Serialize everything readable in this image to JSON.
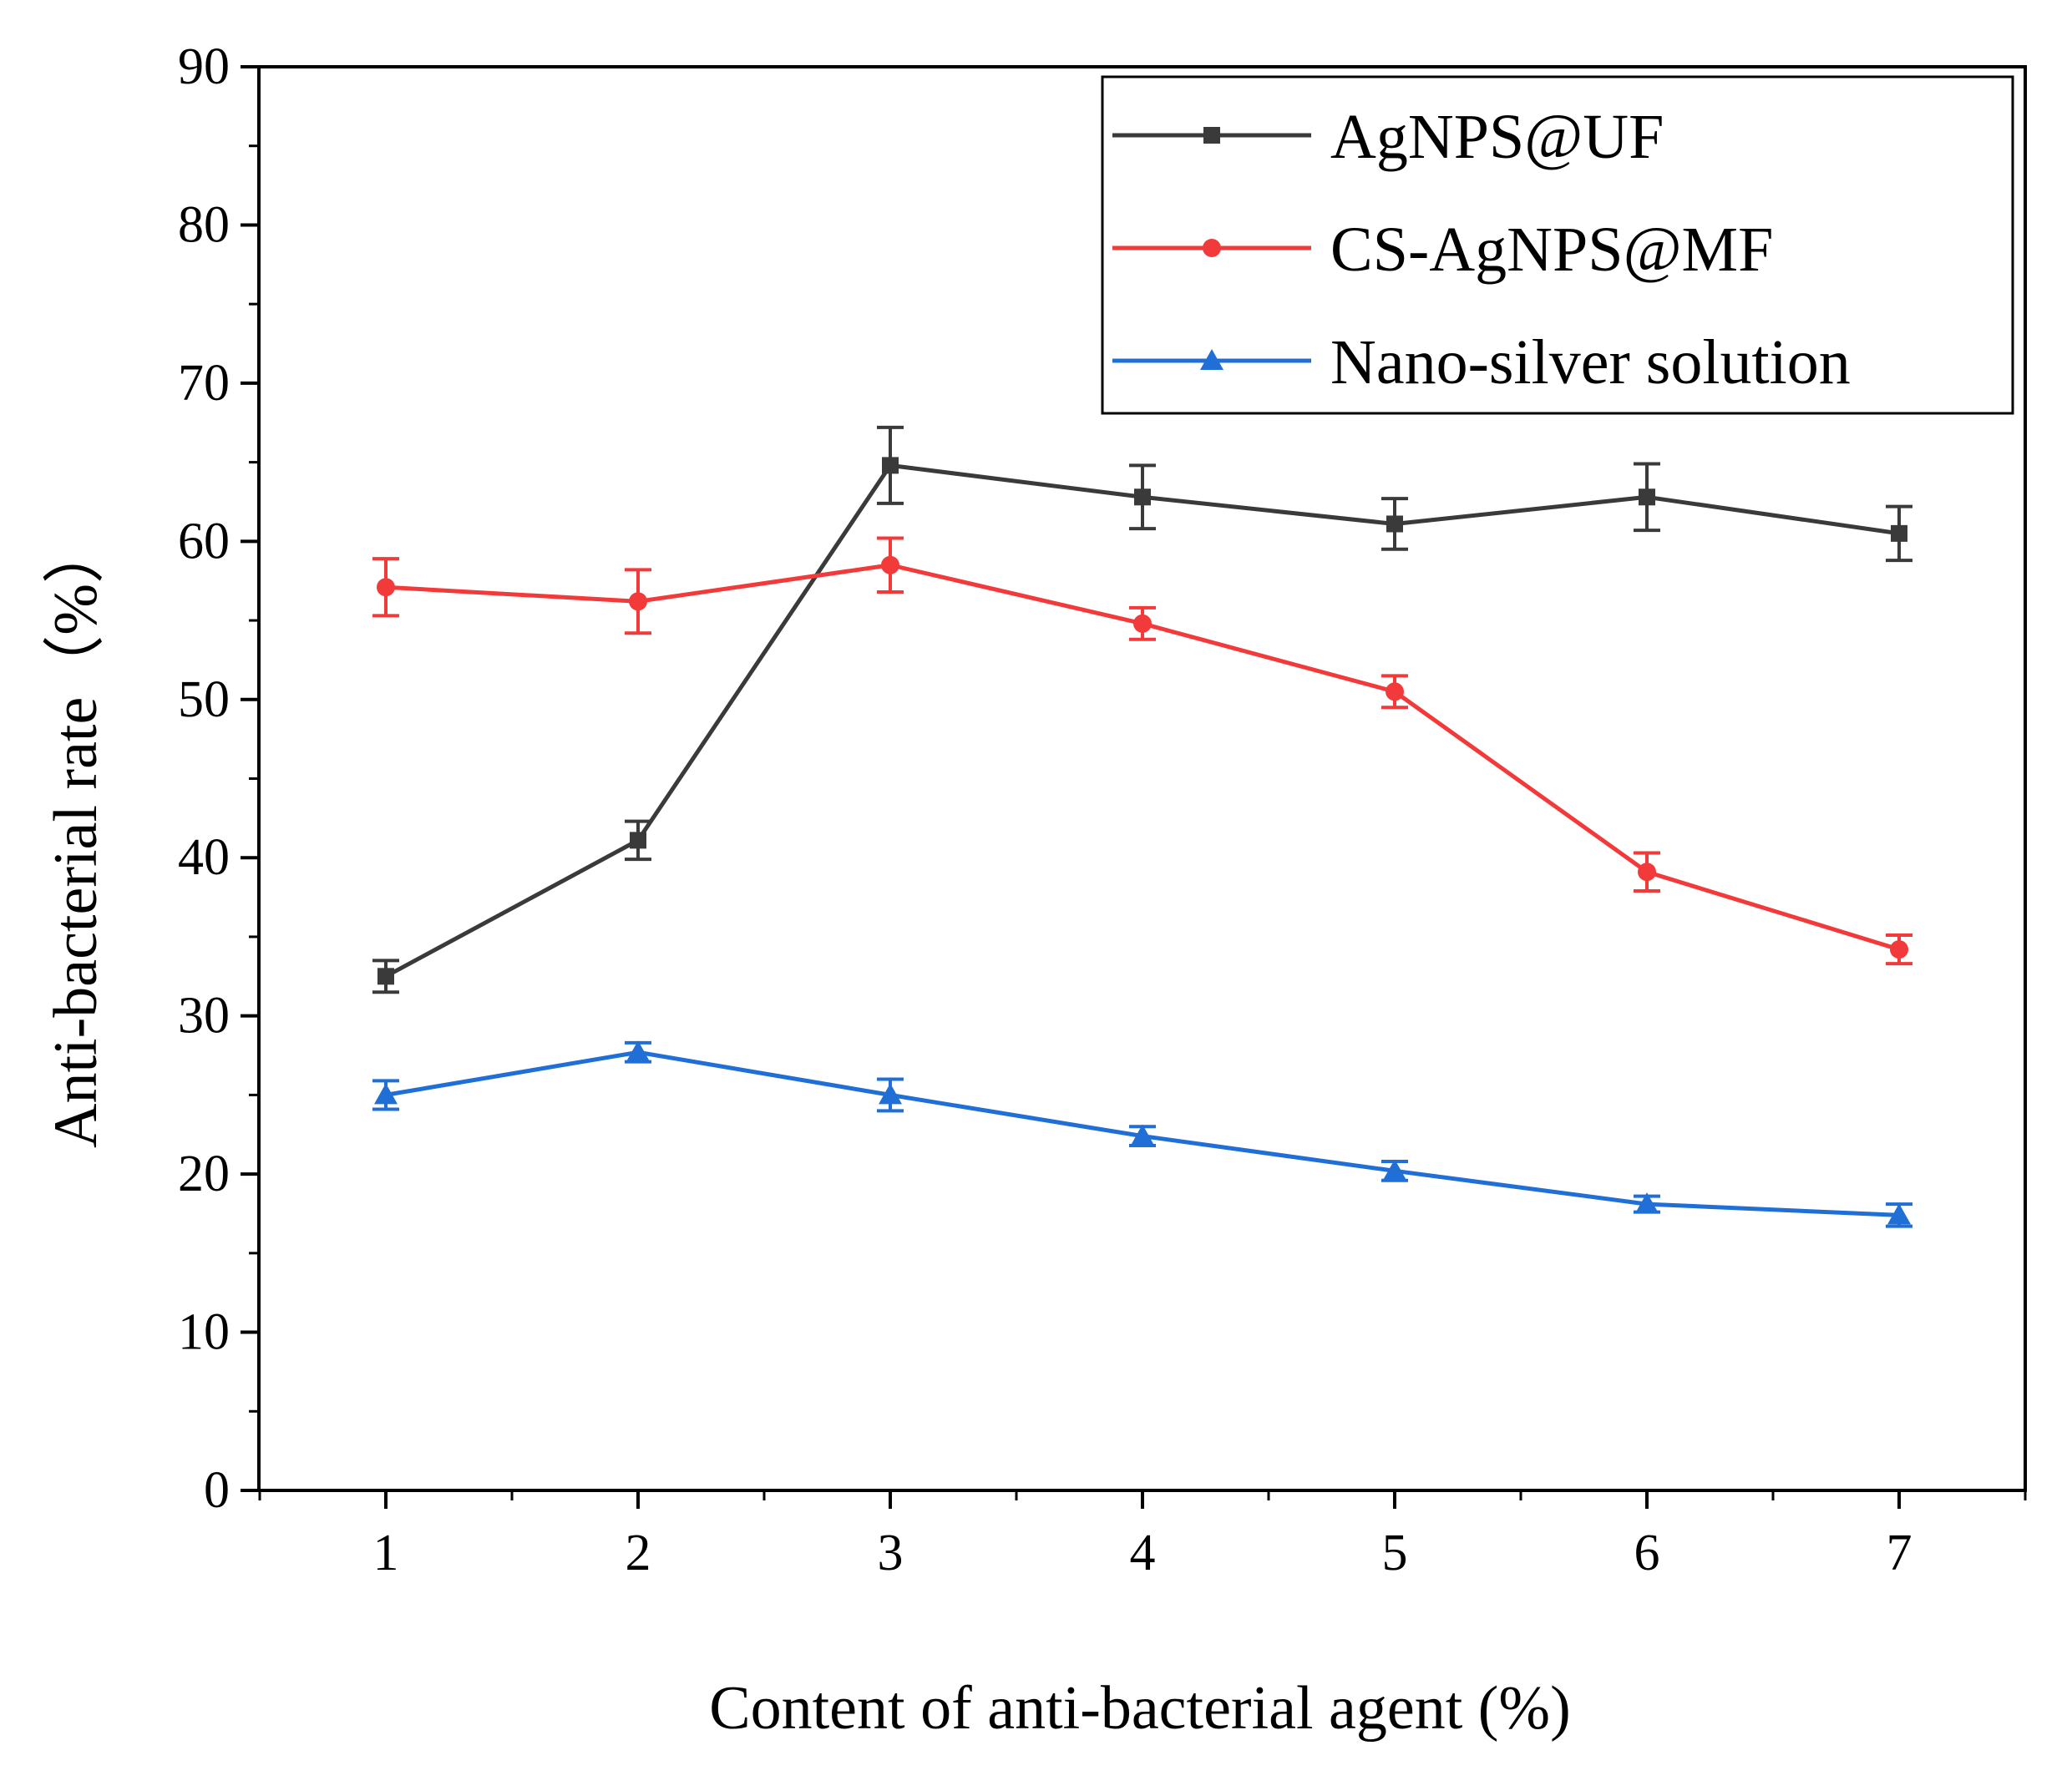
{
  "chart_data": {
    "type": "line",
    "title": "",
    "xlabel": "Content of anti-bacterial agent (%)",
    "ylabel": "Anti-bacterial rate（%）",
    "x": [
      1,
      2,
      3,
      4,
      5,
      6,
      7
    ],
    "xlim": [
      0.5,
      7.5
    ],
    "ylim": [
      0,
      90
    ],
    "xticks": [
      1,
      2,
      3,
      4,
      5,
      6,
      7
    ],
    "yticks": [
      0,
      10,
      20,
      30,
      40,
      50,
      60,
      70,
      80,
      90
    ],
    "grid": false,
    "legend_position": "top-right",
    "series": [
      {
        "name": "AgNPS@UF",
        "color": "#3a3a3a",
        "marker": "square",
        "values": [
          32.5,
          41.1,
          64.8,
          62.8,
          61.1,
          62.8,
          60.5
        ],
        "errors": [
          1.0,
          1.2,
          2.4,
          2.0,
          1.6,
          2.1,
          1.7
        ]
      },
      {
        "name": "CS-AgNPS@MF",
        "color": "#f23a3a",
        "marker": "circle",
        "values": [
          57.1,
          56.2,
          58.5,
          54.8,
          50.5,
          39.1,
          34.2
        ],
        "errors": [
          1.8,
          2.0,
          1.7,
          1.0,
          1.0,
          1.2,
          0.9
        ]
      },
      {
        "name": "Nano-silver solution",
        "color": "#1f6fd6",
        "marker": "triangle",
        "values": [
          25.0,
          27.7,
          25.0,
          22.4,
          20.2,
          18.1,
          17.4
        ],
        "errors": [
          0.9,
          0.6,
          1.0,
          0.6,
          0.6,
          0.5,
          0.7
        ]
      }
    ]
  }
}
